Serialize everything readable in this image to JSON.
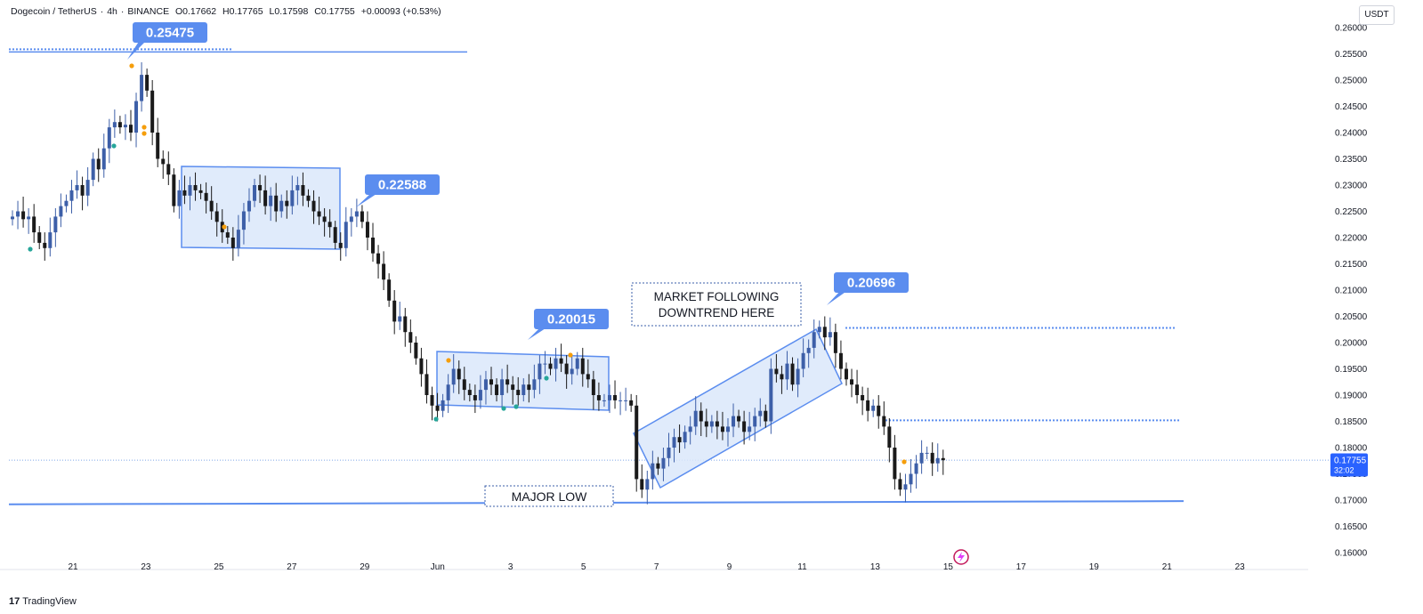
{
  "header": {
    "symbol": "Dogecoin / TetherUS",
    "interval": "4h",
    "exchange": "BINANCE",
    "open": "O0.17662",
    "high": "H0.17765",
    "low": "L0.17598",
    "close": "C0.17755",
    "change": "+0.00093 (+0.53%)"
  },
  "currency": "USDT",
  "branding": {
    "logo_text": "TradingView"
  },
  "colors": {
    "bull": "#3d5fa8",
    "bear": "#1a1a1a",
    "line": "#5b8def",
    "box_fill": "#dbe8fa",
    "box_stroke": "#5b8def",
    "label_fill": "#5b8def",
    "current_price_bg": "#2962ff"
  },
  "chart_data": {
    "type": "candlestick",
    "y_axis": {
      "range": [
        0.1585,
        0.2585
      ],
      "ticks": [
        "0.16000",
        "0.16500",
        "0.17000",
        "0.17500",
        "0.18000",
        "0.18500",
        "0.19000",
        "0.19500",
        "0.20000",
        "0.20500",
        "0.21000",
        "0.21500",
        "0.22000",
        "0.22500",
        "0.23000",
        "0.23500",
        "0.24000",
        "0.24500",
        "0.25000",
        "0.25500",
        "0.26000"
      ]
    },
    "x_axis": {
      "ticks": [
        "21",
        "23",
        "25",
        "27",
        "29",
        "Jun",
        "3",
        "5",
        "7",
        "9",
        "11",
        "13",
        "15",
        "17",
        "19",
        "21",
        "23"
      ]
    },
    "current_price": {
      "value": "0.17755",
      "countdown": "32:02"
    },
    "peak_labels": [
      {
        "text": "0.25475",
        "date": "May 22",
        "value": 0.25475
      },
      {
        "text": "0.22588",
        "date": "May 29",
        "value": 0.22588
      },
      {
        "text": "0.20015",
        "date": "Jun 2",
        "value": 0.20015
      },
      {
        "text": "0.20696",
        "date": "Jun 10",
        "value": 0.20696
      }
    ],
    "annotations": [
      {
        "id": "market",
        "lines": [
          "MARKET FOLLOWING",
          "DOWNTREND HERE"
        ]
      },
      {
        "id": "major_low",
        "lines": [
          "MAJOR LOW"
        ]
      }
    ],
    "horizontal_levels": [
      0.2552,
      0.2028,
      0.1852,
      0.1776
    ],
    "support_line": {
      "from": 0.1692,
      "to": 0.1698
    },
    "candles_close": [
      0.224,
      0.225,
      0.2235,
      0.224,
      0.221,
      0.219,
      0.218,
      0.221,
      0.224,
      0.226,
      0.227,
      0.229,
      0.23,
      0.228,
      0.231,
      0.235,
      0.233,
      0.237,
      0.241,
      0.242,
      0.241,
      0.2415,
      0.24,
      0.246,
      0.251,
      0.248,
      0.24,
      0.235,
      0.234,
      0.232,
      0.226,
      0.229,
      0.228,
      0.23,
      0.229,
      0.2285,
      0.227,
      0.225,
      0.223,
      0.221,
      0.22,
      0.218,
      0.2215,
      0.225,
      0.227,
      0.23,
      0.229,
      0.226,
      0.228,
      0.225,
      0.227,
      0.226,
      0.229,
      0.23,
      0.228,
      0.227,
      0.225,
      0.224,
      0.223,
      0.222,
      0.219,
      0.218,
      0.223,
      0.224,
      0.225,
      0.223,
      0.22,
      0.217,
      0.215,
      0.212,
      0.208,
      0.204,
      0.205,
      0.202,
      0.2,
      0.197,
      0.194,
      0.19,
      0.188,
      0.187,
      0.189,
      0.192,
      0.195,
      0.193,
      0.191,
      0.19,
      0.189,
      0.191,
      0.193,
      0.192,
      0.19,
      0.193,
      0.192,
      0.191,
      0.19,
      0.192,
      0.191,
      0.193,
      0.196,
      0.196,
      0.195,
      0.197,
      0.196,
      0.194,
      0.195,
      0.197,
      0.194,
      0.193,
      0.19,
      0.189,
      0.189,
      0.19,
      0.189,
      0.189,
      0.189,
      0.188,
      0.174,
      0.172,
      0.174,
      0.177,
      0.176,
      0.178,
      0.18,
      0.182,
      0.181,
      0.183,
      0.184,
      0.187,
      0.185,
      0.184,
      0.185,
      0.184,
      0.183,
      0.184,
      0.186,
      0.185,
      0.183,
      0.184,
      0.186,
      0.187,
      0.185,
      0.195,
      0.194,
      0.193,
      0.196,
      0.192,
      0.195,
      0.198,
      0.199,
      0.202,
      0.203,
      0.201,
      0.202,
      0.198,
      0.195,
      0.193,
      0.192,
      0.19,
      0.189,
      0.187,
      0.188,
      0.186,
      0.184,
      0.18,
      0.174,
      0.172,
      0.173,
      0.175,
      0.177,
      0.179,
      0.179,
      0.177,
      0.178,
      0.1776
    ]
  }
}
